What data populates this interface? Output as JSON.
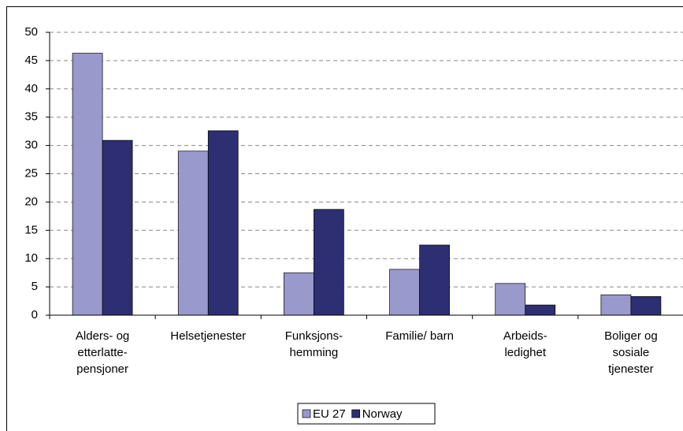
{
  "chart_data": {
    "type": "bar",
    "categories": [
      "Alders- og\netterlatte-\npensjoner",
      "Helsetjenester",
      "Funksjons-\nhemming",
      "Familie/ barn",
      "Arbeids-\nledighet",
      "Boliger og\nsosiale\ntjenester"
    ],
    "series": [
      {
        "name": "EU 27",
        "color": "#9999cc",
        "values": [
          46.3,
          29.0,
          7.5,
          8.1,
          5.6,
          3.6
        ]
      },
      {
        "name": "Norway",
        "color": "#2e2e72",
        "values": [
          30.9,
          32.6,
          18.7,
          12.4,
          1.8,
          3.3
        ]
      }
    ],
    "ylim": [
      0,
      50
    ],
    "yticks": [
      0,
      5,
      10,
      15,
      20,
      25,
      30,
      35,
      40,
      45,
      50
    ],
    "grid": true
  }
}
